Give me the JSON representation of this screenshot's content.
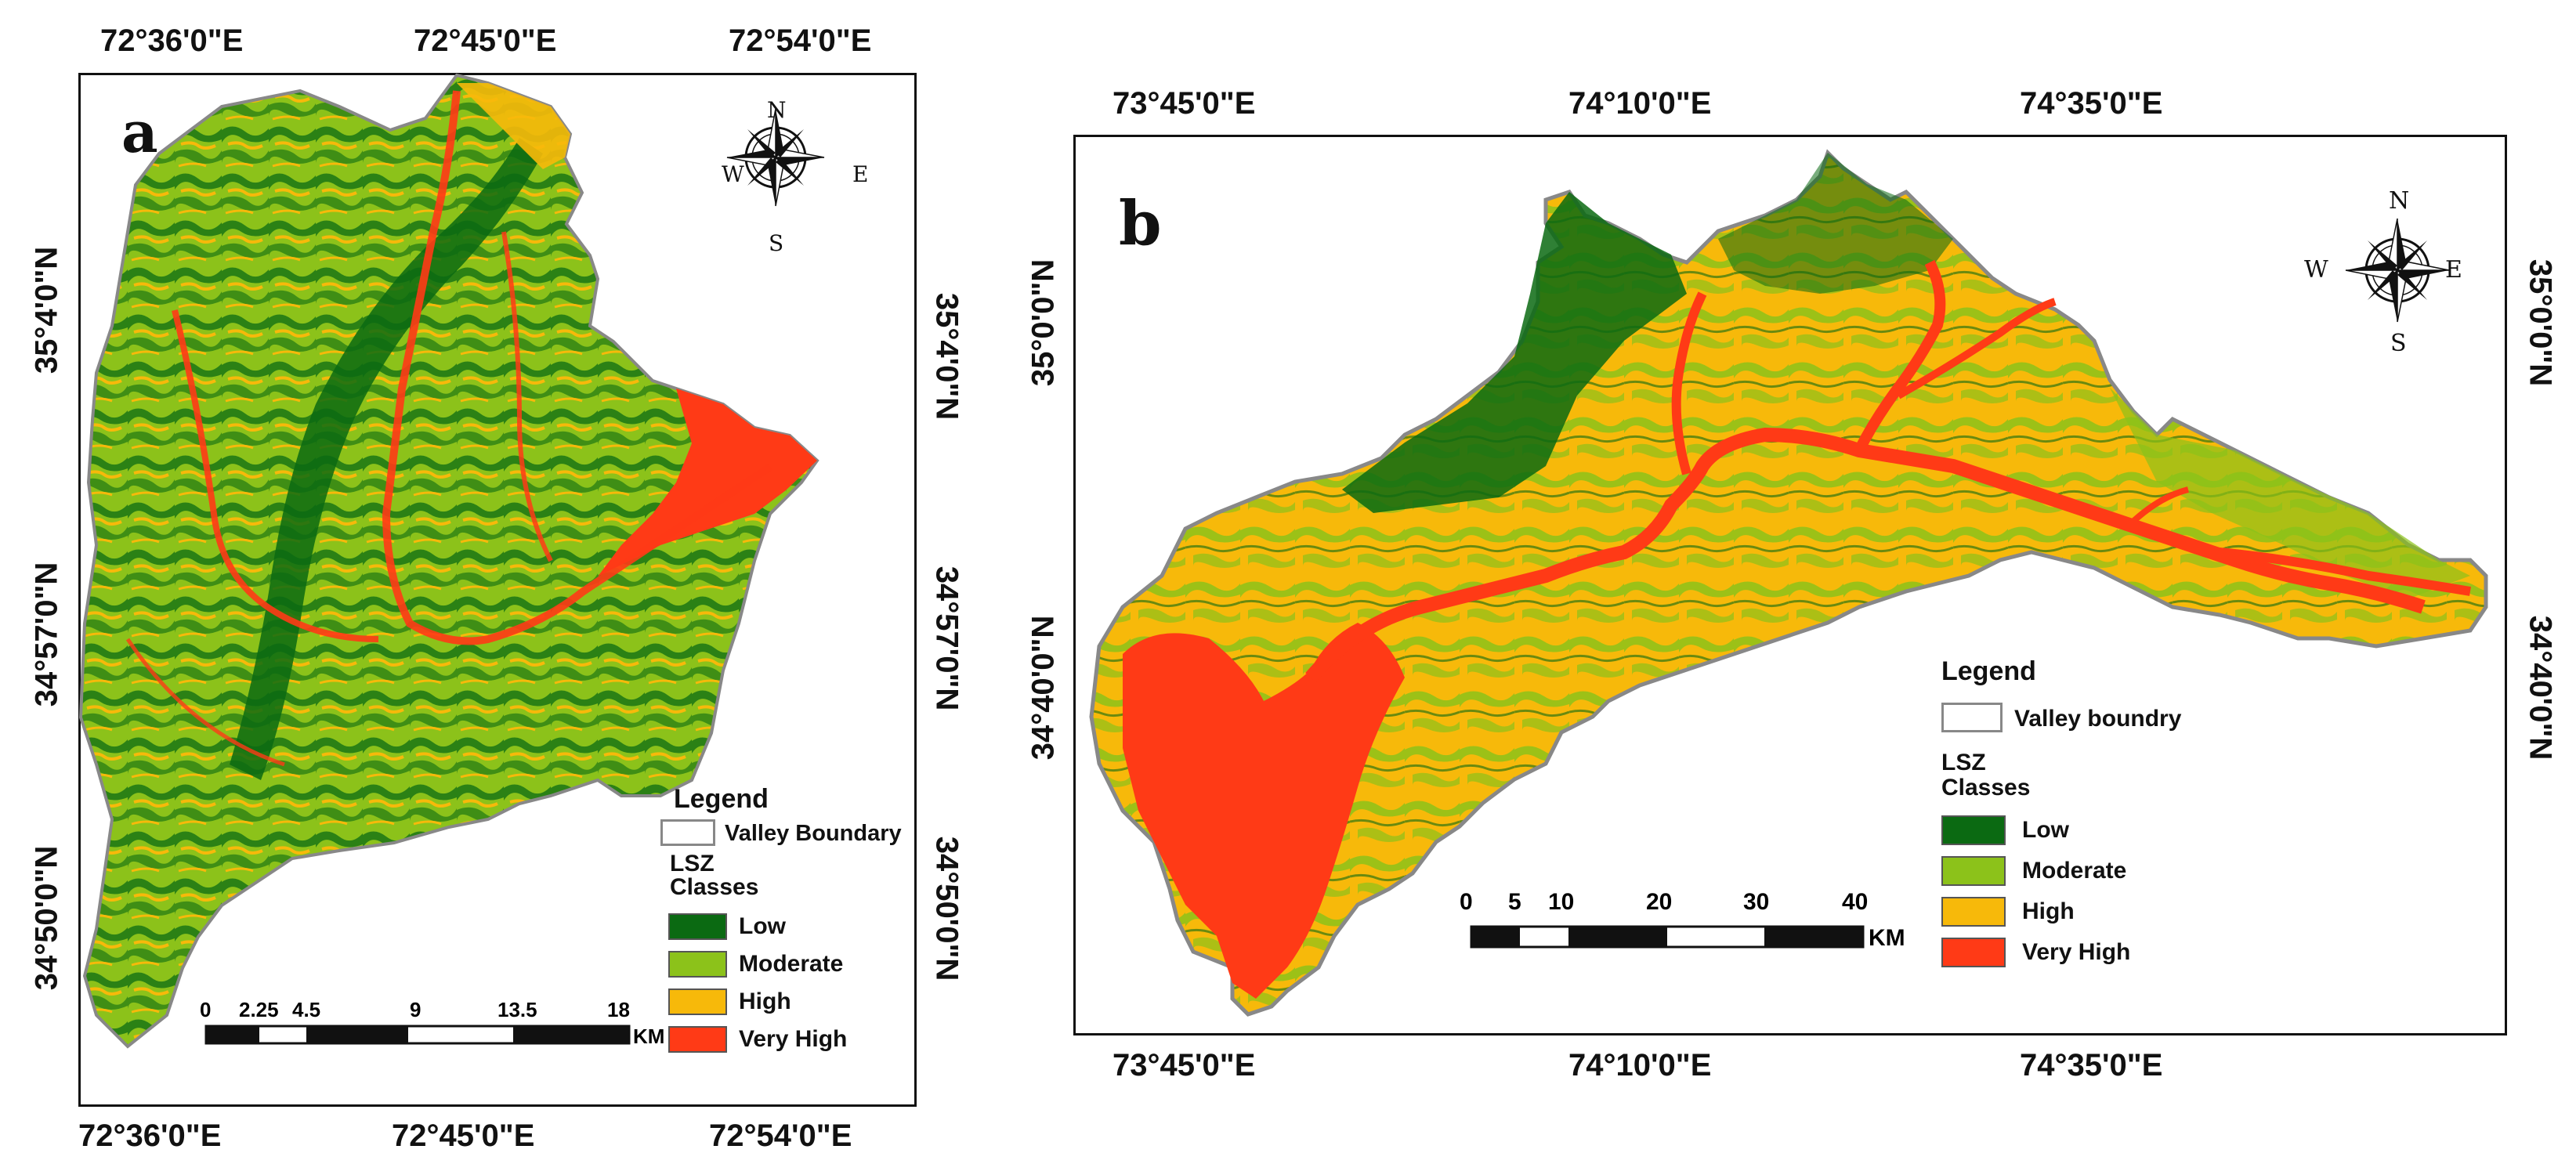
{
  "panel_a": {
    "letter": "a",
    "top_labels": [
      "72°36'0\"E",
      "72°45'0\"E",
      "72°54'0\"E"
    ],
    "bottom_labels": [
      "72°36'0\"E",
      "72°45'0\"E",
      "72°54'0\"E"
    ],
    "left_labels": [
      "35°4'0\"N",
      "34°57'0\"N",
      "34°50'0\"N"
    ],
    "right_labels": [
      "35°4'0\"N",
      "34°57'0\"N",
      "34°50'0\"N"
    ],
    "compass": {
      "n": "N",
      "s": "S",
      "e": "E",
      "w": "W"
    },
    "legend": {
      "title": "Legend",
      "boundary": "Valley Boundary",
      "classes_title_1": "LSZ",
      "classes_title_2": "Classes",
      "classes": [
        "Low",
        "Moderate",
        "High",
        "Very High"
      ]
    },
    "scale": {
      "ticks": [
        "0",
        "2.25",
        "4.5",
        "9",
        "13.5",
        "18"
      ],
      "unit": "KM"
    }
  },
  "panel_b": {
    "letter": "b",
    "top_labels": [
      "73°45'0\"E",
      "74°10'0\"E",
      "74°35'0\"E"
    ],
    "bottom_labels": [
      "73°45'0\"E",
      "74°10'0\"E",
      "74°35'0\"E"
    ],
    "left_labels": [
      "35°0'0\"N",
      "34°40'0\"N"
    ],
    "right_labels": [
      "35°0'0\"N",
      "34°40'0\"N"
    ],
    "compass": {
      "n": "N",
      "s": "S",
      "e": "E",
      "w": "W"
    },
    "legend": {
      "title": "Legend",
      "boundary": "Valley boundry",
      "classes_title_1": "LSZ",
      "classes_title_2": "Classes",
      "classes": [
        "Low",
        "Moderate",
        "High",
        "Very High"
      ]
    },
    "scale": {
      "ticks": [
        "0",
        "5",
        "10",
        "20",
        "30",
        "40"
      ],
      "unit": "KM"
    }
  },
  "colors": {
    "low": "#0b6a12",
    "moderate": "#8cc21a",
    "high": "#f7b90a",
    "very_high": "#ff3a16",
    "boundary": "#888888"
  }
}
